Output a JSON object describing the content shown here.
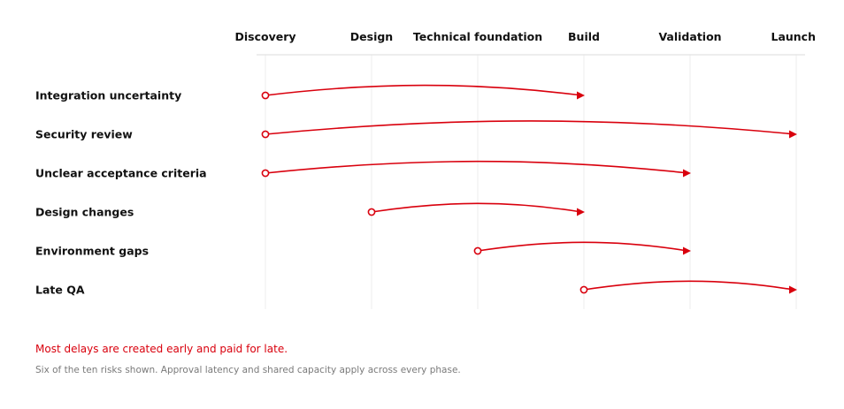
{
  "colors": {
    "accent": "#d9000d",
    "text": "#111111",
    "muted": "#7a7a7a",
    "grid": "#ececec"
  },
  "phases": [
    "Discovery",
    "Design",
    "Technical foundation",
    "Build",
    "Validation",
    "Launch"
  ],
  "risks": [
    {
      "label": "Integration uncertainty",
      "created_phase": "Discovery",
      "paid_phase": "Build"
    },
    {
      "label": "Security review",
      "created_phase": "Discovery",
      "paid_phase": "Launch"
    },
    {
      "label": "Unclear acceptance criteria",
      "created_phase": "Discovery",
      "paid_phase": "Validation"
    },
    {
      "label": "Design changes",
      "created_phase": "Design",
      "paid_phase": "Build"
    },
    {
      "label": "Environment gaps",
      "created_phase": "Technical foundation",
      "paid_phase": "Validation"
    },
    {
      "label": "Late QA",
      "created_phase": "Build",
      "paid_phase": "Launch"
    }
  ],
  "caption": {
    "headline": "Most delays are created early and paid for late.",
    "note": "Six of the ten risks shown. Approval latency and shared capacity apply across every phase."
  }
}
